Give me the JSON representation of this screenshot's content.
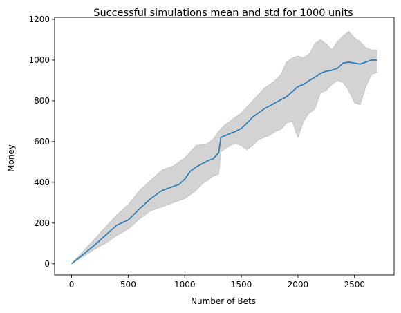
{
  "chart_data": {
    "type": "area",
    "title": "Successful simulations mean and std for 1000 units",
    "xlabel": "Number of Bets",
    "ylabel": "Money",
    "xlim": [
      -150,
      2850
    ],
    "ylim": [
      -55,
      1210
    ],
    "xticks": [
      0,
      500,
      1000,
      1500,
      2000,
      2500
    ],
    "yticks": [
      0,
      200,
      400,
      600,
      800,
      1000,
      1200
    ],
    "grid": false,
    "colors": {
      "mean_line": "#1f77b4",
      "std_band_fill": "#d3d3d3",
      "std_band_edge": "#bdbdbd"
    },
    "series": [
      {
        "role": "mean",
        "x": [
          0,
          100,
          200,
          250,
          300,
          400,
          500,
          600,
          700,
          800,
          900,
          950,
          1000,
          1050,
          1100,
          1150,
          1200,
          1250,
          1300,
          1320,
          1400,
          1450,
          1500,
          1550,
          1600,
          1650,
          1700,
          1750,
          1800,
          1850,
          1900,
          1950,
          2000,
          2050,
          2100,
          2150,
          2200,
          2250,
          2300,
          2350,
          2400,
          2450,
          2500,
          2550,
          2600,
          2650,
          2700
        ],
        "y": [
          0,
          45,
          90,
          115,
          140,
          190,
          215,
          270,
          320,
          360,
          380,
          390,
          415,
          455,
          475,
          490,
          505,
          515,
          545,
          620,
          640,
          650,
          665,
          690,
          720,
          740,
          760,
          775,
          790,
          805,
          820,
          845,
          870,
          880,
          900,
          915,
          935,
          945,
          950,
          960,
          985,
          990,
          985,
          980,
          990,
          1000,
          1000
        ]
      },
      {
        "role": "upper",
        "x": [
          0,
          100,
          200,
          300,
          400,
          500,
          600,
          700,
          800,
          900,
          1000,
          1100,
          1200,
          1250,
          1300,
          1350,
          1400,
          1450,
          1500,
          1550,
          1600,
          1650,
          1700,
          1750,
          1800,
          1850,
          1900,
          1950,
          2000,
          2050,
          2100,
          2150,
          2200,
          2250,
          2300,
          2350,
          2400,
          2450,
          2500,
          2550,
          2600,
          2650,
          2700
        ],
        "y": [
          0,
          60,
          120,
          180,
          240,
          290,
          360,
          410,
          460,
          480,
          520,
          580,
          590,
          610,
          650,
          680,
          700,
          720,
          740,
          770,
          800,
          830,
          860,
          880,
          900,
          930,
          990,
          1010,
          1020,
          1010,
          1030,
          1080,
          1100,
          1080,
          1050,
          1090,
          1120,
          1140,
          1110,
          1090,
          1060,
          1050,
          1050
        ]
      },
      {
        "role": "lower",
        "x": [
          0,
          100,
          200,
          300,
          400,
          500,
          600,
          700,
          800,
          900,
          1000,
          1050,
          1100,
          1150,
          1200,
          1250,
          1300,
          1320,
          1400,
          1450,
          1500,
          1550,
          1600,
          1650,
          1700,
          1750,
          1800,
          1850,
          1900,
          1950,
          2000,
          2050,
          2100,
          2150,
          2200,
          2250,
          2300,
          2350,
          2400,
          2450,
          2500,
          2550,
          2600,
          2650,
          2700
        ],
        "y": [
          0,
          35,
          70,
          100,
          140,
          170,
          220,
          260,
          280,
          300,
          320,
          340,
          360,
          390,
          410,
          430,
          440,
          550,
          580,
          590,
          580,
          560,
          580,
          610,
          620,
          630,
          650,
          660,
          690,
          700,
          620,
          700,
          740,
          760,
          840,
          850,
          880,
          900,
          890,
          850,
          790,
          780,
          870,
          930,
          940
        ]
      }
    ]
  }
}
